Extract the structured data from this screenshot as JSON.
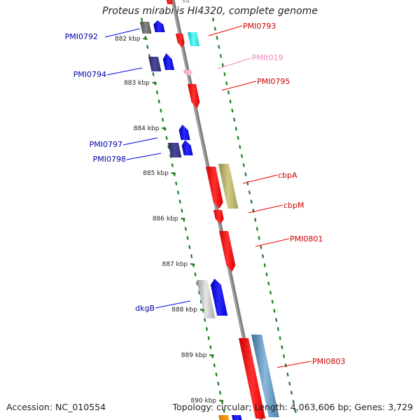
{
  "title": "Proteus mirabilis HI4320, complete genome",
  "accession_text": "Accession: NC_010554",
  "summary_text": "Topology: circular; Length: 4,063,606 bp; Genes: 3,729",
  "colors": {
    "backbone": "#808080",
    "tick": "#1a7a1a",
    "forward_gene": "#0000ee",
    "reverse_gene": "#ee0000",
    "forward_label": "#0000aa",
    "reverse_label": "#cc0000",
    "trna_label": "#ee88bb"
  },
  "scale_labels": [
    {
      "text": "882 kbp"
    },
    {
      "text": "883 kbp"
    },
    {
      "text": "884 kbp"
    },
    {
      "text": "885 kbp"
    },
    {
      "text": "886 kbp"
    },
    {
      "text": "887 kbp"
    },
    {
      "text": "888 kbp"
    },
    {
      "text": "889 kbp"
    },
    {
      "text": "890 kbp"
    }
  ],
  "gene_labels": [
    {
      "text": "PMI0792",
      "strand": "forward"
    },
    {
      "text": "PMI0793",
      "strand": "reverse"
    },
    {
      "text": "PMIt019",
      "strand": "trna"
    },
    {
      "text": "PMI0794",
      "strand": "forward"
    },
    {
      "text": "PMI0795",
      "strand": "reverse"
    },
    {
      "text": "PMI0797",
      "strand": "forward"
    },
    {
      "text": "PMI0798",
      "strand": "forward"
    },
    {
      "text": "cbpA",
      "strand": "reverse"
    },
    {
      "text": "cbpM",
      "strand": "reverse"
    },
    {
      "text": "PMI0801",
      "strand": "reverse"
    },
    {
      "text": "dkgB",
      "strand": "forward"
    },
    {
      "text": "PMI0803",
      "strand": "reverse"
    }
  ]
}
